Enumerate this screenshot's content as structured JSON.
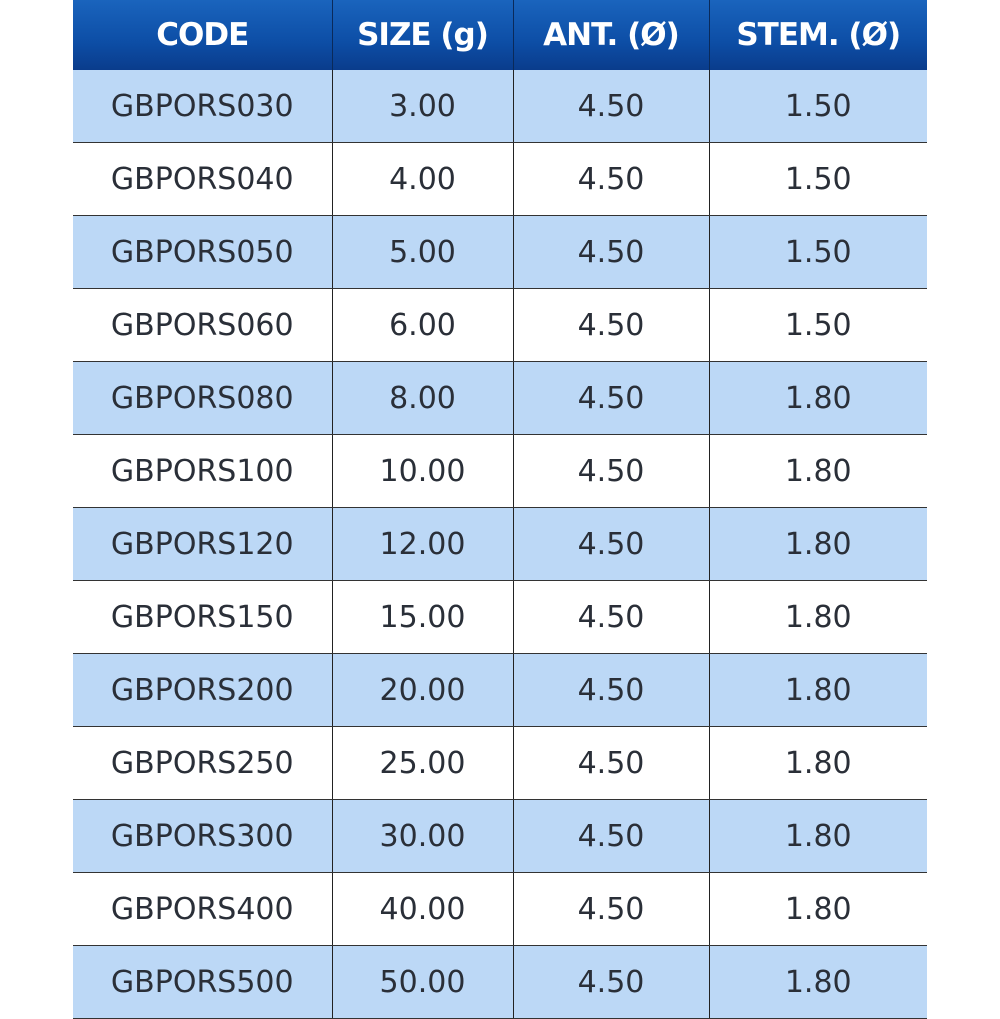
{
  "table": {
    "headers": [
      "CODE",
      "SIZE (g)",
      "ANT. (Ø)",
      "STEM. (Ø)"
    ],
    "rows": [
      [
        "GBPORS030",
        "3.00",
        "4.50",
        "1.50"
      ],
      [
        "GBPORS040",
        "4.00",
        "4.50",
        "1.50"
      ],
      [
        "GBPORS050",
        "5.00",
        "4.50",
        "1.50"
      ],
      [
        "GBPORS060",
        "6.00",
        "4.50",
        "1.50"
      ],
      [
        "GBPORS080",
        "8.00",
        "4.50",
        "1.80"
      ],
      [
        "GBPORS100",
        "10.00",
        "4.50",
        "1.80"
      ],
      [
        "GBPORS120",
        "12.00",
        "4.50",
        "1.80"
      ],
      [
        "GBPORS150",
        "15.00",
        "4.50",
        "1.80"
      ],
      [
        "GBPORS200",
        "20.00",
        "4.50",
        "1.80"
      ],
      [
        "GBPORS250",
        "25.00",
        "4.50",
        "1.80"
      ],
      [
        "GBPORS300",
        "30.00",
        "4.50",
        "1.80"
      ],
      [
        "GBPORS400",
        "40.00",
        "4.50",
        "1.80"
      ],
      [
        "GBPORS500",
        "50.00",
        "4.50",
        "1.80"
      ]
    ],
    "colors": {
      "header": "#0d4ea6",
      "alt_row": "#bcd8f6",
      "row": "#ffffff"
    }
  }
}
